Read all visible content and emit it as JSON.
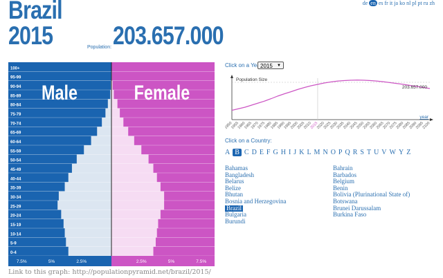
{
  "languages": [
    "de",
    "en",
    "es",
    "fr",
    "it",
    "ja",
    "ko",
    "nl",
    "pl",
    "pt",
    "ru",
    "zh"
  ],
  "active_language": "en",
  "header": {
    "country": "Brazil",
    "year": "2015",
    "population_label": "Population:",
    "population_value": "203.657.000"
  },
  "pyramid": {
    "male_label": "Male",
    "female_label": "Female",
    "age_groups": [
      "100+",
      "95-99",
      "90-94",
      "85-89",
      "80-84",
      "75-79",
      "70-74",
      "65-69",
      "60-64",
      "55-59",
      "50-54",
      "45-49",
      "40-44",
      "35-39",
      "30-34",
      "25-29",
      "20-24",
      "15-19",
      "10-14",
      "5-9",
      "0-4"
    ],
    "male_pct": [
      0.0,
      0.02,
      0.05,
      0.1,
      0.3,
      0.5,
      0.8,
      1.2,
      1.7,
      2.3,
      2.9,
      3.3,
      3.6,
      3.9,
      4.4,
      4.5,
      4.2,
      4.0,
      3.9,
      3.8,
      3.6
    ],
    "female_pct": [
      0.01,
      0.04,
      0.1,
      0.2,
      0.5,
      0.7,
      1.0,
      1.4,
      1.9,
      2.5,
      3.1,
      3.5,
      3.8,
      4.1,
      4.4,
      4.4,
      4.1,
      3.9,
      3.8,
      3.7,
      3.5
    ],
    "x_max_pct": 8.5,
    "x_ticks_male": [
      "7.5%",
      "5%",
      "2.5%"
    ],
    "x_ticks_female": [
      "2.5%",
      "5%",
      "7.5%"
    ],
    "male_bg": "#1a64b0",
    "female_bg": "#cc55c4"
  },
  "link_text": "Link to this graph: http://populationpyramid.net/brazil/2015/",
  "year_picker": {
    "label": "Click on a Year:",
    "selected": "2015"
  },
  "chart_data": {
    "type": "line",
    "title": "Population Size",
    "xlabel": "year",
    "ylabel": "",
    "current_label": "203.657.000",
    "x": [
      1950,
      1955,
      1960,
      1965,
      1970,
      1975,
      1980,
      1985,
      1990,
      1995,
      2000,
      2005,
      2010,
      2015,
      2020,
      2025,
      2030,
      2035,
      2040,
      2045,
      2050,
      2055,
      2060,
      2065,
      2070,
      2075,
      2080,
      2085,
      2090,
      2095,
      2100
    ],
    "values": [
      54,
      63,
      72,
      84,
      96,
      108,
      122,
      137,
      150,
      162,
      175,
      186,
      196,
      204,
      212,
      218,
      223,
      226,
      228,
      229,
      228,
      226,
      223,
      219,
      214,
      209,
      204,
      198,
      192,
      186,
      180
    ],
    "ylim": [
      0,
      240
    ],
    "highlight_x": 2015
  },
  "country_picker": {
    "label": "Click on a Country:",
    "letters": [
      "A",
      "B",
      "C",
      "D",
      "E",
      "F",
      "G",
      "H",
      "I",
      "J",
      "K",
      "L",
      "M",
      "N",
      "O",
      "P",
      "Q",
      "R",
      "S",
      "T",
      "U",
      "V",
      "W",
      "Y",
      "Z"
    ],
    "selected_letter": "B",
    "col1": [
      "Bahamas",
      "Bangladesh",
      "Belarus",
      "Belize",
      "Bhutan",
      "Bosnia and Herzegovina",
      "Brazil",
      "Bulgaria",
      "Burundi"
    ],
    "col2": [
      "Bahrain",
      "Barbados",
      "Belgium",
      "Benin",
      "Bolivia (Plurinational State of)",
      "Botswana",
      "Brunei Darussalam",
      "Burkina Faso"
    ],
    "selected_country": "Brazil"
  }
}
